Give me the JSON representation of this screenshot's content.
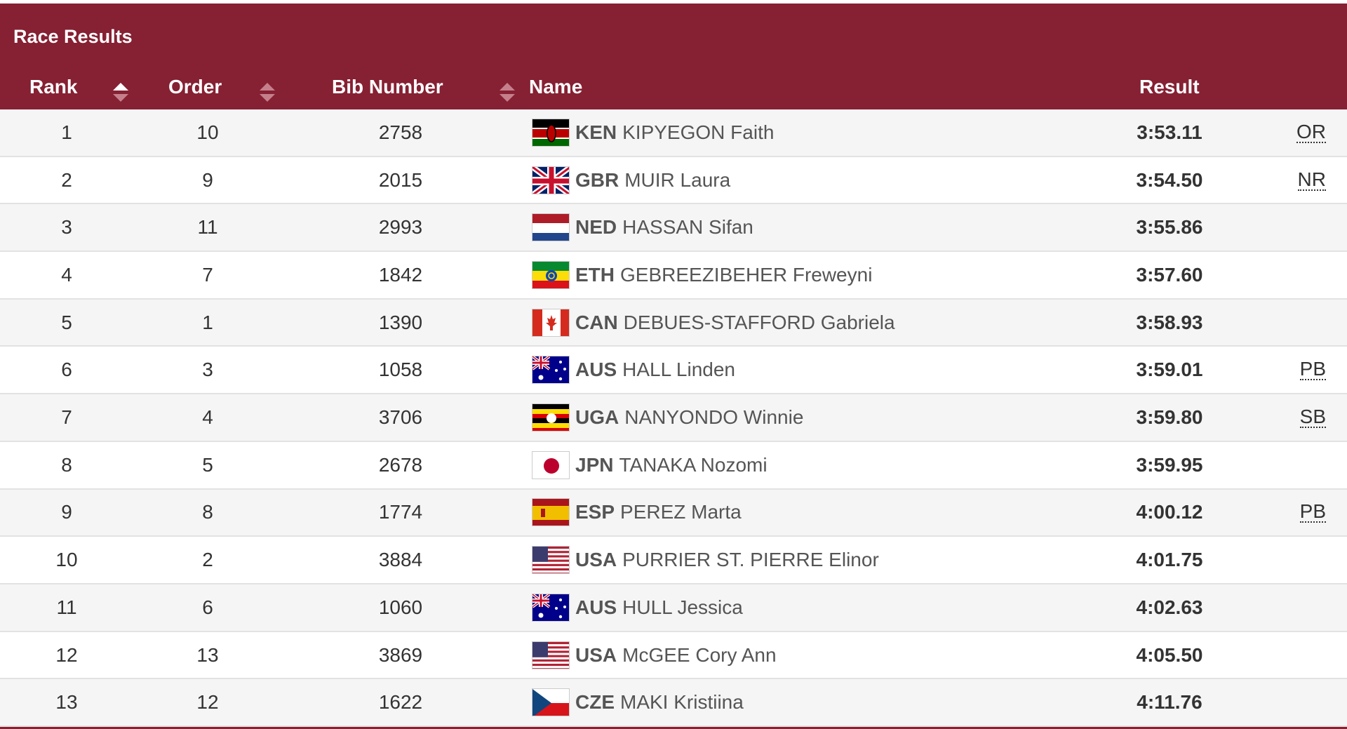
{
  "panel": {
    "title": "Race Results",
    "colors": {
      "header": "#862033",
      "row_alt": "#f5f5f5"
    }
  },
  "columns": {
    "rank": "Rank",
    "order": "Order",
    "bib": "Bib Number",
    "name": "Name",
    "result": "Result",
    "sort_icons": {
      "rank": "sort-ascending-icon",
      "order": "sort-icon",
      "bib": "sort-icon"
    }
  },
  "rows": [
    {
      "rank": "1",
      "order": "10",
      "bib": "2758",
      "flag": "flag-ken-icon",
      "noc": "KEN",
      "name": "KIPYEGON Faith",
      "result": "3:53.11",
      "record": "OR"
    },
    {
      "rank": "2",
      "order": "9",
      "bib": "2015",
      "flag": "flag-gbr-icon",
      "noc": "GBR",
      "name": "MUIR Laura",
      "result": "3:54.50",
      "record": "NR"
    },
    {
      "rank": "3",
      "order": "11",
      "bib": "2993",
      "flag": "flag-ned-icon",
      "noc": "NED",
      "name": "HASSAN Sifan",
      "result": "3:55.86",
      "record": ""
    },
    {
      "rank": "4",
      "order": "7",
      "bib": "1842",
      "flag": "flag-eth-icon",
      "noc": "ETH",
      "name": "GEBREEZIBEHER Freweyni",
      "result": "3:57.60",
      "record": ""
    },
    {
      "rank": "5",
      "order": "1",
      "bib": "1390",
      "flag": "flag-can-icon",
      "noc": "CAN",
      "name": "DEBUES-STAFFORD Gabriela",
      "result": "3:58.93",
      "record": ""
    },
    {
      "rank": "6",
      "order": "3",
      "bib": "1058",
      "flag": "flag-aus-icon",
      "noc": "AUS",
      "name": "HALL Linden",
      "result": "3:59.01",
      "record": "PB"
    },
    {
      "rank": "7",
      "order": "4",
      "bib": "3706",
      "flag": "flag-uga-icon",
      "noc": "UGA",
      "name": "NANYONDO Winnie",
      "result": "3:59.80",
      "record": "SB"
    },
    {
      "rank": "8",
      "order": "5",
      "bib": "2678",
      "flag": "flag-jpn-icon",
      "noc": "JPN",
      "name": "TANAKA Nozomi",
      "result": "3:59.95",
      "record": ""
    },
    {
      "rank": "9",
      "order": "8",
      "bib": "1774",
      "flag": "flag-esp-icon",
      "noc": "ESP",
      "name": "PEREZ Marta",
      "result": "4:00.12",
      "record": "PB"
    },
    {
      "rank": "10",
      "order": "2",
      "bib": "3884",
      "flag": "flag-usa-icon",
      "noc": "USA",
      "name": "PURRIER ST. PIERRE Elinor",
      "result": "4:01.75",
      "record": ""
    },
    {
      "rank": "11",
      "order": "6",
      "bib": "1060",
      "flag": "flag-aus-icon",
      "noc": "AUS",
      "name": "HULL Jessica",
      "result": "4:02.63",
      "record": ""
    },
    {
      "rank": "12",
      "order": "13",
      "bib": "3869",
      "flag": "flag-usa-icon",
      "noc": "USA",
      "name": "McGEE Cory Ann",
      "result": "4:05.50",
      "record": ""
    },
    {
      "rank": "13",
      "order": "12",
      "bib": "1622",
      "flag": "flag-cze-icon",
      "noc": "CZE",
      "name": "MAKI Kristiina",
      "result": "4:11.76",
      "record": ""
    }
  ]
}
